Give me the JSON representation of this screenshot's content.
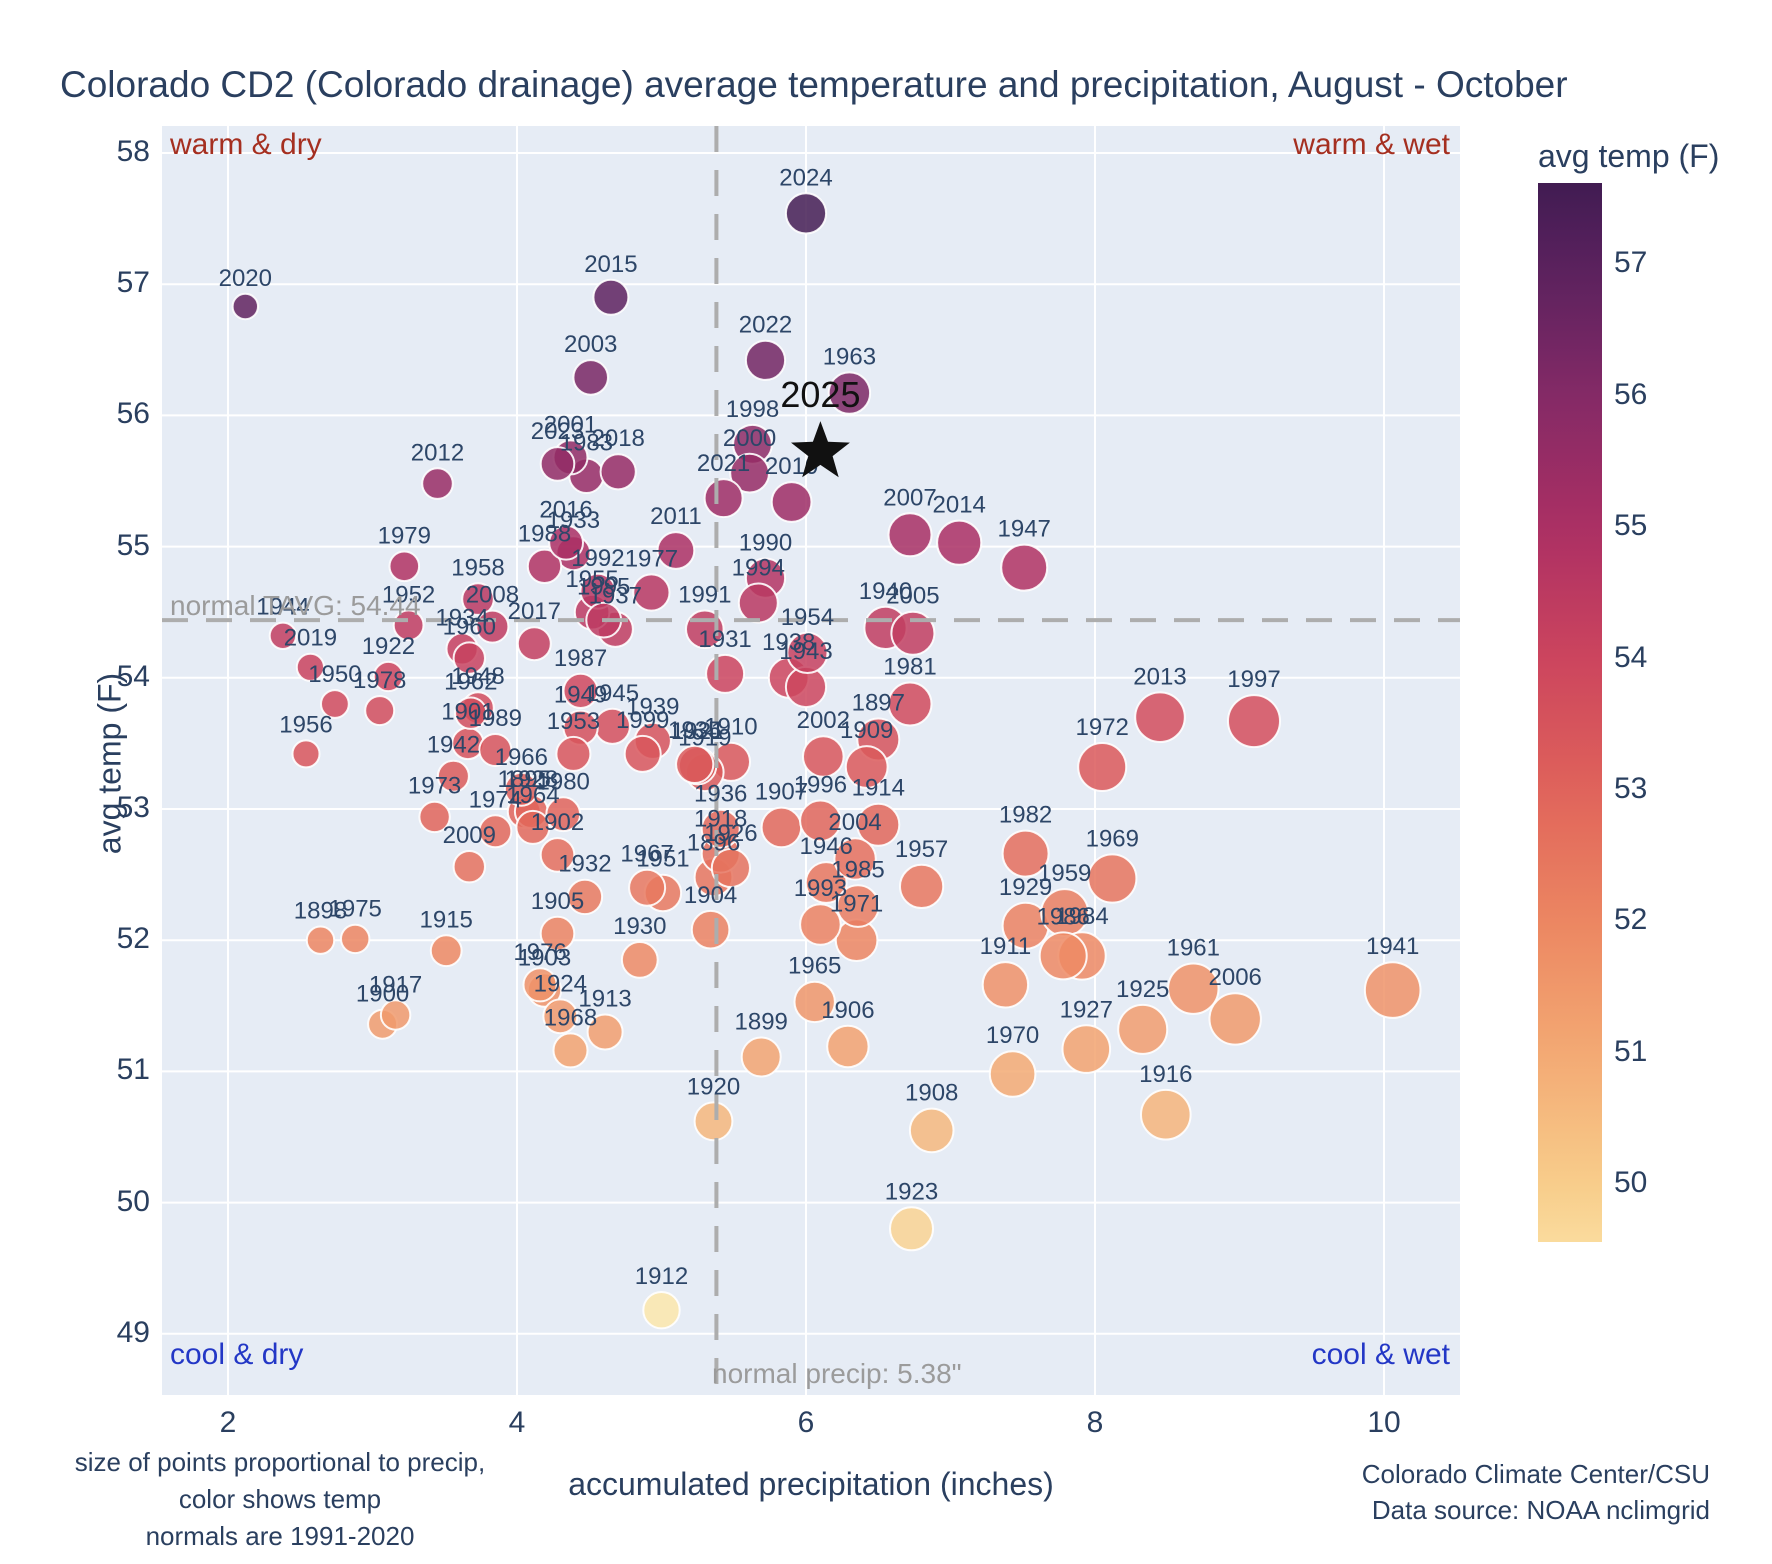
{
  "title": "Colorado CD2 (Colorado drainage) average temperature and precipitation, August - October",
  "annotations": {
    "top_left": "warm & dry",
    "top_right": "warm & wet",
    "bottom_left": "cool & dry",
    "bottom_right": "cool & wet",
    "normal_tavg_label": "normal TAVG: 54.44",
    "normal_precip_label": "normal precip: 5.38\"",
    "warm_color": "#a52f20",
    "cool_color": "#2337c6"
  },
  "footer": {
    "left_line1": "size of points proportional to precip,",
    "left_line2": "color shows temp",
    "left_line3": "normals are 1991-2020",
    "right_line1": "Colorado Climate Center/CSU",
    "right_line2": "Data source: NOAA nclimgrid"
  },
  "colorbar": {
    "title": "avg temp (F)",
    "tick_labels": [
      57,
      56,
      55,
      54,
      53,
      52,
      51,
      50
    ],
    "top_value": 57.62,
    "bottom_value": 49.56
  },
  "chart_data": {
    "type": "scatter",
    "title": "Colorado CD2 (Colorado drainage) average temperature and precipitation, August - October",
    "xlabel": "accumulated precipitation (inches)",
    "ylabel": "avg temp (F)",
    "xlim": [
      1.54,
      10.53
    ],
    "ylim": [
      48.53,
      58.2
    ],
    "x_ticks": [
      2,
      4,
      6,
      8,
      10
    ],
    "y_ticks": [
      58,
      57,
      56,
      55,
      54,
      53,
      52,
      51,
      50,
      49
    ],
    "grid": true,
    "normals": {
      "tavg": 54.44,
      "precip": 5.38
    },
    "size_note": "size of points proportional to precip",
    "highlight": {
      "year": 2025,
      "precip": 6.1,
      "temp": 55.72,
      "marker": "star",
      "color": "#111111"
    },
    "colormap": [
      {
        "t": 49,
        "c": "#fcedb3"
      },
      {
        "t": 50,
        "c": "#f8cd8b"
      },
      {
        "t": 51,
        "c": "#f3a973"
      },
      {
        "t": 52,
        "c": "#ec8662"
      },
      {
        "t": 53,
        "c": "#e0635a"
      },
      {
        "t": 54,
        "c": "#cc455e"
      },
      {
        "t": 55,
        "c": "#ab2f64"
      },
      {
        "t": 56,
        "c": "#842a66"
      },
      {
        "t": 57,
        "c": "#59215e"
      },
      {
        "t": 58,
        "c": "#33194a"
      }
    ],
    "points": [
      {
        "year": 1895,
        "precip": 4.05,
        "temp": 52.98
      },
      {
        "year": 1896,
        "precip": 5.36,
        "temp": 52.48
      },
      {
        "year": 1897,
        "precip": 6.5,
        "temp": 53.53
      },
      {
        "year": 1898,
        "precip": 2.64,
        "temp": 52.0
      },
      {
        "year": 1899,
        "precip": 5.69,
        "temp": 51.11
      },
      {
        "year": 1900,
        "precip": 3.07,
        "temp": 51.36
      },
      {
        "year": 1901,
        "precip": 3.66,
        "temp": 53.5
      },
      {
        "year": 1902,
        "precip": 4.28,
        "temp": 52.65
      },
      {
        "year": 1903,
        "precip": 4.19,
        "temp": 51.62
      },
      {
        "year": 1904,
        "precip": 5.34,
        "temp": 52.08
      },
      {
        "year": 1905,
        "precip": 4.28,
        "temp": 52.05
      },
      {
        "year": 1906,
        "precip": 6.29,
        "temp": 51.19
      },
      {
        "year": 1907,
        "precip": 5.83,
        "temp": 52.86
      },
      {
        "year": 1908,
        "precip": 6.87,
        "temp": 50.55
      },
      {
        "year": 1909,
        "precip": 6.42,
        "temp": 53.32
      },
      {
        "year": 1910,
        "precip": 5.48,
        "temp": 53.36
      },
      {
        "year": 1911,
        "precip": 7.38,
        "temp": 51.66
      },
      {
        "year": 1912,
        "precip": 5.0,
        "temp": 49.18
      },
      {
        "year": 1913,
        "precip": 4.61,
        "temp": 51.3
      },
      {
        "year": 1914,
        "precip": 6.5,
        "temp": 52.88
      },
      {
        "year": 1915,
        "precip": 3.51,
        "temp": 51.92
      },
      {
        "year": 1916,
        "precip": 8.49,
        "temp": 50.67
      },
      {
        "year": 1917,
        "precip": 3.16,
        "temp": 51.43
      },
      {
        "year": 1918,
        "precip": 5.41,
        "temp": 52.66
      },
      {
        "year": 1919,
        "precip": 5.3,
        "temp": 53.28
      },
      {
        "year": 1920,
        "precip": 5.36,
        "temp": 50.62
      },
      {
        "year": 1921,
        "precip": 5.25,
        "temp": 53.33
      },
      {
        "year": 1922,
        "precip": 3.11,
        "temp": 54.01
      },
      {
        "year": 1923,
        "precip": 6.73,
        "temp": 49.8
      },
      {
        "year": 1924,
        "precip": 4.3,
        "temp": 51.42
      },
      {
        "year": 1925,
        "precip": 8.33,
        "temp": 51.32
      },
      {
        "year": 1926,
        "precip": 5.48,
        "temp": 52.55
      },
      {
        "year": 1927,
        "precip": 7.94,
        "temp": 51.17
      },
      {
        "year": 1928,
        "precip": 4.1,
        "temp": 52.98
      },
      {
        "year": 1929,
        "precip": 7.52,
        "temp": 52.11
      },
      {
        "year": 1930,
        "precip": 4.85,
        "temp": 51.85
      },
      {
        "year": 1931,
        "precip": 5.44,
        "temp": 54.03
      },
      {
        "year": 1932,
        "precip": 4.47,
        "temp": 52.33
      },
      {
        "year": 1933,
        "precip": 4.39,
        "temp": 54.95
      },
      {
        "year": 1934,
        "precip": 3.62,
        "temp": 54.22
      },
      {
        "year": 1935,
        "precip": 5.23,
        "temp": 53.34
      },
      {
        "year": 1936,
        "precip": 5.41,
        "temp": 52.85
      },
      {
        "year": 1937,
        "precip": 4.68,
        "temp": 54.37
      },
      {
        "year": 1938,
        "precip": 5.88,
        "temp": 54.0
      },
      {
        "year": 1939,
        "precip": 4.94,
        "temp": 53.52
      },
      {
        "year": 1940,
        "precip": 6.55,
        "temp": 54.38
      },
      {
        "year": 1941,
        "precip": 10.06,
        "temp": 51.62
      },
      {
        "year": 1942,
        "precip": 3.56,
        "temp": 53.25
      },
      {
        "year": 1943,
        "precip": 6.0,
        "temp": 53.93
      },
      {
        "year": 1944,
        "precip": 2.38,
        "temp": 54.32
      },
      {
        "year": 1945,
        "precip": 4.66,
        "temp": 53.63
      },
      {
        "year": 1946,
        "precip": 6.14,
        "temp": 52.44
      },
      {
        "year": 1947,
        "precip": 7.51,
        "temp": 54.84
      },
      {
        "year": 1948,
        "precip": 3.73,
        "temp": 53.77
      },
      {
        "year": 1949,
        "precip": 4.44,
        "temp": 53.62
      },
      {
        "year": 1950,
        "precip": 2.74,
        "temp": 53.8
      },
      {
        "year": 1951,
        "precip": 5.01,
        "temp": 52.36
      },
      {
        "year": 1952,
        "precip": 3.25,
        "temp": 54.4
      },
      {
        "year": 1953,
        "precip": 4.39,
        "temp": 53.42
      },
      {
        "year": 1954,
        "precip": 6.01,
        "temp": 54.19
      },
      {
        "year": 1955,
        "precip": 4.52,
        "temp": 54.5
      },
      {
        "year": 1956,
        "precip": 2.54,
        "temp": 53.42
      },
      {
        "year": 1957,
        "precip": 6.8,
        "temp": 52.41
      },
      {
        "year": 1958,
        "precip": 3.73,
        "temp": 54.6
      },
      {
        "year": 1959,
        "precip": 7.79,
        "temp": 52.21
      },
      {
        "year": 1960,
        "precip": 3.67,
        "temp": 54.15
      },
      {
        "year": 1961,
        "precip": 8.68,
        "temp": 51.63
      },
      {
        "year": 1962,
        "precip": 3.68,
        "temp": 53.73
      },
      {
        "year": 1963,
        "precip": 6.3,
        "temp": 56.17
      },
      {
        "year": 1964,
        "precip": 4.11,
        "temp": 52.86
      },
      {
        "year": 1965,
        "precip": 6.06,
        "temp": 51.53
      },
      {
        "year": 1966,
        "precip": 4.03,
        "temp": 53.15
      },
      {
        "year": 1967,
        "precip": 4.9,
        "temp": 52.4
      },
      {
        "year": 1968,
        "precip": 4.37,
        "temp": 51.16
      },
      {
        "year": 1969,
        "precip": 8.12,
        "temp": 52.47
      },
      {
        "year": 1970,
        "precip": 7.43,
        "temp": 50.98
      },
      {
        "year": 1971,
        "precip": 6.35,
        "temp": 52.0
      },
      {
        "year": 1972,
        "precip": 8.05,
        "temp": 53.32
      },
      {
        "year": 1973,
        "precip": 3.43,
        "temp": 52.94
      },
      {
        "year": 1974,
        "precip": 3.85,
        "temp": 52.83
      },
      {
        "year": 1975,
        "precip": 2.88,
        "temp": 52.01
      },
      {
        "year": 1976,
        "precip": 4.16,
        "temp": 51.66
      },
      {
        "year": 1977,
        "precip": 4.93,
        "temp": 54.65
      },
      {
        "year": 1978,
        "precip": 3.05,
        "temp": 53.75
      },
      {
        "year": 1979,
        "precip": 3.22,
        "temp": 54.85
      },
      {
        "year": 1980,
        "precip": 4.32,
        "temp": 52.96
      },
      {
        "year": 1981,
        "precip": 6.72,
        "temp": 53.8
      },
      {
        "year": 1982,
        "precip": 7.52,
        "temp": 52.66
      },
      {
        "year": 1983,
        "precip": 4.48,
        "temp": 55.54
      },
      {
        "year": 1984,
        "precip": 7.91,
        "temp": 51.88
      },
      {
        "year": 1985,
        "precip": 6.36,
        "temp": 52.26
      },
      {
        "year": 1986,
        "precip": 7.78,
        "temp": 51.88
      },
      {
        "year": 1987,
        "precip": 4.44,
        "temp": 53.9
      },
      {
        "year": 1988,
        "precip": 4.19,
        "temp": 54.85
      },
      {
        "year": 1989,
        "precip": 3.85,
        "temp": 53.45
      },
      {
        "year": 1990,
        "precip": 5.72,
        "temp": 54.76
      },
      {
        "year": 1991,
        "precip": 5.3,
        "temp": 54.37
      },
      {
        "year": 1992,
        "precip": 4.56,
        "temp": 54.66
      },
      {
        "year": 1993,
        "precip": 6.1,
        "temp": 52.12
      },
      {
        "year": 1994,
        "precip": 5.67,
        "temp": 54.57
      },
      {
        "year": 1995,
        "precip": 4.6,
        "temp": 54.44
      },
      {
        "year": 1996,
        "precip": 6.1,
        "temp": 52.91
      },
      {
        "year": 1997,
        "precip": 9.1,
        "temp": 53.67
      },
      {
        "year": 1998,
        "precip": 5.63,
        "temp": 55.78
      },
      {
        "year": 1999,
        "precip": 4.87,
        "temp": 53.42
      },
      {
        "year": 2000,
        "precip": 5.61,
        "temp": 55.56
      },
      {
        "year": 2001,
        "precip": 4.37,
        "temp": 55.68
      },
      {
        "year": 2002,
        "precip": 6.12,
        "temp": 53.4
      },
      {
        "year": 2003,
        "precip": 4.51,
        "temp": 56.29
      },
      {
        "year": 2004,
        "precip": 6.34,
        "temp": 52.62
      },
      {
        "year": 2005,
        "precip": 6.74,
        "temp": 54.34
      },
      {
        "year": 2006,
        "precip": 8.97,
        "temp": 51.4
      },
      {
        "year": 2007,
        "precip": 6.72,
        "temp": 55.09
      },
      {
        "year": 2008,
        "precip": 3.83,
        "temp": 54.39
      },
      {
        "year": 2009,
        "precip": 3.67,
        "temp": 52.56
      },
      {
        "year": 2010,
        "precip": 5.9,
        "temp": 55.34
      },
      {
        "year": 2011,
        "precip": 5.1,
        "temp": 54.97
      },
      {
        "year": 2012,
        "precip": 3.45,
        "temp": 55.48
      },
      {
        "year": 2013,
        "precip": 8.45,
        "temp": 53.7
      },
      {
        "year": 2014,
        "precip": 7.06,
        "temp": 55.03
      },
      {
        "year": 2015,
        "precip": 4.65,
        "temp": 56.9
      },
      {
        "year": 2016,
        "precip": 4.34,
        "temp": 55.03
      },
      {
        "year": 2017,
        "precip": 4.12,
        "temp": 54.26
      },
      {
        "year": 2018,
        "precip": 4.7,
        "temp": 55.57
      },
      {
        "year": 2019,
        "precip": 2.57,
        "temp": 54.08
      },
      {
        "year": 2020,
        "precip": 2.12,
        "temp": 56.83
      },
      {
        "year": 2021,
        "precip": 5.43,
        "temp": 55.37
      },
      {
        "year": 2022,
        "precip": 5.72,
        "temp": 56.42
      },
      {
        "year": 2023,
        "precip": 4.28,
        "temp": 55.63
      },
      {
        "year": 2024,
        "precip": 6.0,
        "temp": 57.54
      }
    ]
  }
}
